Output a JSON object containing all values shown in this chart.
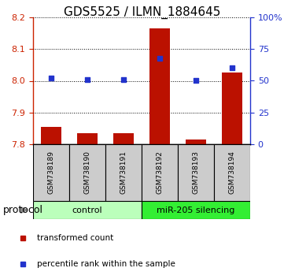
{
  "title": "GDS5525 / ILMN_1884645",
  "samples": [
    "GSM738189",
    "GSM738190",
    "GSM738191",
    "GSM738192",
    "GSM738193",
    "GSM738194"
  ],
  "red_values": [
    7.855,
    7.835,
    7.835,
    8.165,
    7.815,
    8.025
  ],
  "blue_values": [
    52,
    51,
    51,
    68,
    50,
    60
  ],
  "ylim_left": [
    7.8,
    8.2
  ],
  "ylim_right": [
    0,
    100
  ],
  "yticks_left": [
    7.8,
    7.9,
    8.0,
    8.1,
    8.2
  ],
  "yticks_right": [
    0,
    25,
    50,
    75,
    100
  ],
  "groups": [
    {
      "label": "control",
      "indices": [
        0,
        1,
        2
      ],
      "color": "#bbffbb"
    },
    {
      "label": "miR-205 silencing",
      "indices": [
        3,
        4,
        5
      ],
      "color": "#33ee33"
    }
  ],
  "red_color": "#bb1100",
  "blue_color": "#2233cc",
  "bar_bottom": 7.8,
  "protocol_label": "protocol",
  "legend_red": "transformed count",
  "legend_blue": "percentile rank within the sample",
  "background_color": "#ffffff",
  "tick_color_left": "#cc2200",
  "tick_color_right": "#2233cc",
  "sample_box_color": "#cccccc",
  "title_fontsize": 11,
  "tick_fontsize": 8,
  "sample_fontsize": 6.5,
  "group_fontsize": 8,
  "legend_fontsize": 7.5,
  "protocol_fontsize": 9
}
